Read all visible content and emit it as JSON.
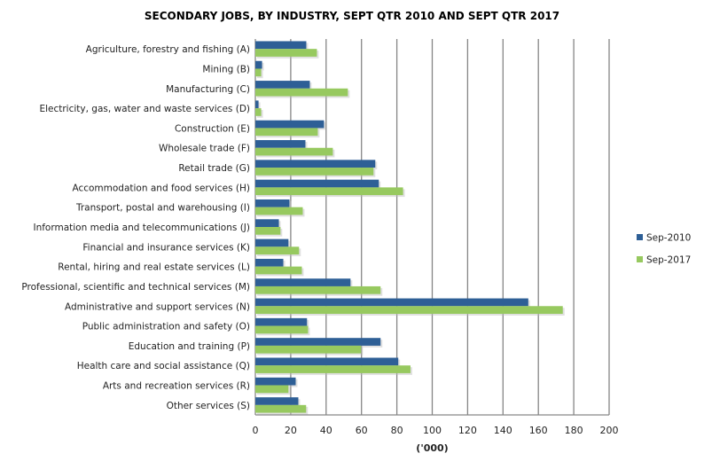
{
  "chart_data": {
    "type": "bar",
    "orientation": "horizontal",
    "title": "SECONDARY JOBS, BY INDUSTRY, SEPT QTR 2010 AND SEPT QTR 2017",
    "xlabel": "('000)",
    "ylabel": "",
    "xlim": [
      0,
      200
    ],
    "xticks": [
      "0",
      "20",
      "40",
      "60",
      "80",
      "100",
      "120",
      "140",
      "160",
      "180",
      "200"
    ],
    "grid": "vertical",
    "legend_position": "right",
    "categories": [
      "Agriculture, forestry and fishing (A)",
      "Mining (B)",
      "Manufacturing (C)",
      "Electricity, gas, water and waste services (D)",
      "Construction (E)",
      "Wholesale trade (F)",
      "Retail trade (G)",
      "Accommodation and food services (H)",
      "Transport, postal and warehousing (I)",
      "Information media and telecommunications (J)",
      "Financial and insurance services (K)",
      "Rental, hiring and real estate services (L)",
      "Professional, scientific and technical services (M)",
      "Administrative and support services (N)",
      "Public administration and safety (O)",
      "Education and training (P)",
      "Health care and social assistance (Q)",
      "Arts and recreation services (R)",
      "Other services (S)"
    ],
    "series": [
      {
        "name": "Sep-2010",
        "color": "#2e5f96",
        "values": [
          28.8,
          3.8,
          30.8,
          1.8,
          38.8,
          28.3,
          67.8,
          69.8,
          19.3,
          13.3,
          18.7,
          15.8,
          53.8,
          154.3,
          29.2,
          70.8,
          80.8,
          22.8,
          24.3
        ]
      },
      {
        "name": "Sep-2017",
        "color": "#97c95f",
        "values": [
          34.8,
          3.3,
          52.3,
          3.3,
          35.3,
          43.8,
          66.8,
          83.5,
          26.8,
          14.2,
          24.7,
          26.3,
          70.8,
          173.8,
          29.8,
          59.8,
          87.7,
          18.7,
          28.7
        ]
      }
    ]
  }
}
